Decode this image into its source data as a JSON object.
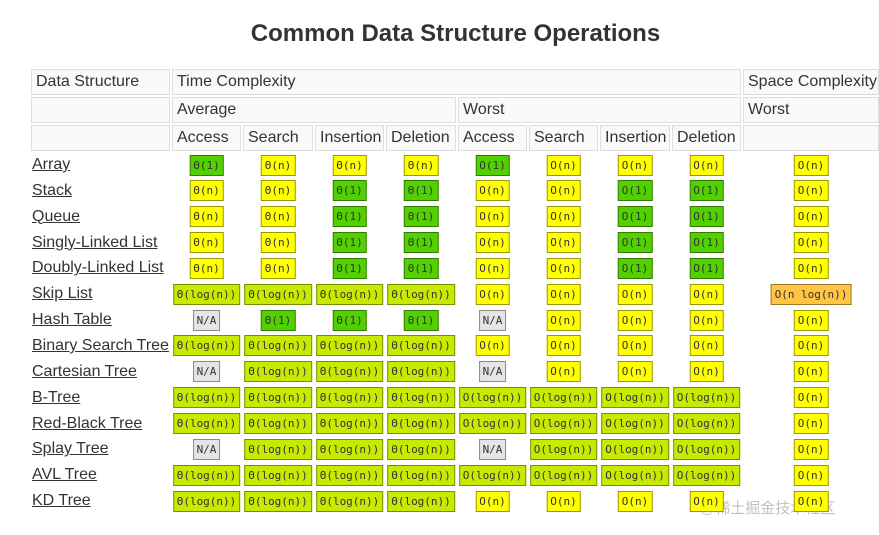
{
  "title": "Common Data Structure Operations",
  "header": {
    "corner": "Data Structure",
    "time": "Time Complexity",
    "space": "Space Complexity",
    "average": "Average",
    "worst": "Worst",
    "space_worst": "Worst",
    "average_ops": [
      "Access",
      "Search",
      "Insertion",
      "Deletion"
    ],
    "worst_ops": [
      "Access",
      "Search",
      "Insertion",
      "Deletion"
    ]
  },
  "rows": [
    {
      "name": "Array",
      "cells": [
        {
          "text": "Θ(1)",
          "color": "#53d000"
        },
        {
          "text": "Θ(n)",
          "color": "#ffff00"
        },
        {
          "text": "Θ(n)",
          "color": "#ffff00"
        },
        {
          "text": "Θ(n)",
          "color": "#ffff00"
        },
        {
          "text": "O(1)",
          "color": "#53d000"
        },
        {
          "text": "O(n)",
          "color": "#ffff00"
        },
        {
          "text": "O(n)",
          "color": "#ffff00"
        },
        {
          "text": "O(n)",
          "color": "#ffff00"
        },
        {
          "text": "O(n)",
          "color": "#ffff00"
        }
      ]
    },
    {
      "name": "Stack",
      "cells": [
        {
          "text": "Θ(n)",
          "color": "#ffff00"
        },
        {
          "text": "Θ(n)",
          "color": "#ffff00"
        },
        {
          "text": "Θ(1)",
          "color": "#53d000"
        },
        {
          "text": "Θ(1)",
          "color": "#53d000"
        },
        {
          "text": "O(n)",
          "color": "#ffff00"
        },
        {
          "text": "O(n)",
          "color": "#ffff00"
        },
        {
          "text": "O(1)",
          "color": "#53d000"
        },
        {
          "text": "O(1)",
          "color": "#53d000"
        },
        {
          "text": "O(n)",
          "color": "#ffff00"
        }
      ]
    },
    {
      "name": "Queue",
      "cells": [
        {
          "text": "Θ(n)",
          "color": "#ffff00"
        },
        {
          "text": "Θ(n)",
          "color": "#ffff00"
        },
        {
          "text": "Θ(1)",
          "color": "#53d000"
        },
        {
          "text": "Θ(1)",
          "color": "#53d000"
        },
        {
          "text": "O(n)",
          "color": "#ffff00"
        },
        {
          "text": "O(n)",
          "color": "#ffff00"
        },
        {
          "text": "O(1)",
          "color": "#53d000"
        },
        {
          "text": "O(1)",
          "color": "#53d000"
        },
        {
          "text": "O(n)",
          "color": "#ffff00"
        }
      ]
    },
    {
      "name": "Singly-Linked List",
      "cells": [
        {
          "text": "Θ(n)",
          "color": "#ffff00"
        },
        {
          "text": "Θ(n)",
          "color": "#ffff00"
        },
        {
          "text": "Θ(1)",
          "color": "#53d000"
        },
        {
          "text": "Θ(1)",
          "color": "#53d000"
        },
        {
          "text": "O(n)",
          "color": "#ffff00"
        },
        {
          "text": "O(n)",
          "color": "#ffff00"
        },
        {
          "text": "O(1)",
          "color": "#53d000"
        },
        {
          "text": "O(1)",
          "color": "#53d000"
        },
        {
          "text": "O(n)",
          "color": "#ffff00"
        }
      ]
    },
    {
      "name": "Doubly-Linked List",
      "cells": [
        {
          "text": "Θ(n)",
          "color": "#ffff00"
        },
        {
          "text": "Θ(n)",
          "color": "#ffff00"
        },
        {
          "text": "Θ(1)",
          "color": "#53d000"
        },
        {
          "text": "Θ(1)",
          "color": "#53d000"
        },
        {
          "text": "O(n)",
          "color": "#ffff00"
        },
        {
          "text": "O(n)",
          "color": "#ffff00"
        },
        {
          "text": "O(1)",
          "color": "#53d000"
        },
        {
          "text": "O(1)",
          "color": "#53d000"
        },
        {
          "text": "O(n)",
          "color": "#ffff00"
        }
      ]
    },
    {
      "name": "Skip List",
      "cells": [
        {
          "text": "Θ(log(n))",
          "color": "#c8ea00"
        },
        {
          "text": "Θ(log(n))",
          "color": "#c8ea00"
        },
        {
          "text": "Θ(log(n))",
          "color": "#c8ea00"
        },
        {
          "text": "Θ(log(n))",
          "color": "#c8ea00"
        },
        {
          "text": "O(n)",
          "color": "#ffff00"
        },
        {
          "text": "O(n)",
          "color": "#ffff00"
        },
        {
          "text": "O(n)",
          "color": "#ffff00"
        },
        {
          "text": "O(n)",
          "color": "#ffff00"
        },
        {
          "text": "O(n log(n))",
          "color": "#ffc543"
        }
      ]
    },
    {
      "name": "Hash Table",
      "cells": [
        {
          "text": "N/A",
          "color": "#e5e5e5"
        },
        {
          "text": "Θ(1)",
          "color": "#53d000"
        },
        {
          "text": "Θ(1)",
          "color": "#53d000"
        },
        {
          "text": "Θ(1)",
          "color": "#53d000"
        },
        {
          "text": "N/A",
          "color": "#e5e5e5"
        },
        {
          "text": "O(n)",
          "color": "#ffff00"
        },
        {
          "text": "O(n)",
          "color": "#ffff00"
        },
        {
          "text": "O(n)",
          "color": "#ffff00"
        },
        {
          "text": "O(n)",
          "color": "#ffff00"
        }
      ]
    },
    {
      "name": "Binary Search Tree",
      "cells": [
        {
          "text": "Θ(log(n))",
          "color": "#c8ea00"
        },
        {
          "text": "Θ(log(n))",
          "color": "#c8ea00"
        },
        {
          "text": "Θ(log(n))",
          "color": "#c8ea00"
        },
        {
          "text": "Θ(log(n))",
          "color": "#c8ea00"
        },
        {
          "text": "O(n)",
          "color": "#ffff00"
        },
        {
          "text": "O(n)",
          "color": "#ffff00"
        },
        {
          "text": "O(n)",
          "color": "#ffff00"
        },
        {
          "text": "O(n)",
          "color": "#ffff00"
        },
        {
          "text": "O(n)",
          "color": "#ffff00"
        }
      ]
    },
    {
      "name": "Cartesian Tree",
      "cells": [
        {
          "text": "N/A",
          "color": "#e5e5e5"
        },
        {
          "text": "Θ(log(n))",
          "color": "#c8ea00"
        },
        {
          "text": "Θ(log(n))",
          "color": "#c8ea00"
        },
        {
          "text": "Θ(log(n))",
          "color": "#c8ea00"
        },
        {
          "text": "N/A",
          "color": "#e5e5e5"
        },
        {
          "text": "O(n)",
          "color": "#ffff00"
        },
        {
          "text": "O(n)",
          "color": "#ffff00"
        },
        {
          "text": "O(n)",
          "color": "#ffff00"
        },
        {
          "text": "O(n)",
          "color": "#ffff00"
        }
      ]
    },
    {
      "name": "B-Tree",
      "cells": [
        {
          "text": "Θ(log(n))",
          "color": "#c8ea00"
        },
        {
          "text": "Θ(log(n))",
          "color": "#c8ea00"
        },
        {
          "text": "Θ(log(n))",
          "color": "#c8ea00"
        },
        {
          "text": "Θ(log(n))",
          "color": "#c8ea00"
        },
        {
          "text": "O(log(n))",
          "color": "#c8ea00"
        },
        {
          "text": "O(log(n))",
          "color": "#c8ea00"
        },
        {
          "text": "O(log(n))",
          "color": "#c8ea00"
        },
        {
          "text": "O(log(n))",
          "color": "#c8ea00"
        },
        {
          "text": "O(n)",
          "color": "#ffff00"
        }
      ]
    },
    {
      "name": "Red-Black Tree",
      "cells": [
        {
          "text": "Θ(log(n))",
          "color": "#c8ea00"
        },
        {
          "text": "Θ(log(n))",
          "color": "#c8ea00"
        },
        {
          "text": "Θ(log(n))",
          "color": "#c8ea00"
        },
        {
          "text": "Θ(log(n))",
          "color": "#c8ea00"
        },
        {
          "text": "O(log(n))",
          "color": "#c8ea00"
        },
        {
          "text": "O(log(n))",
          "color": "#c8ea00"
        },
        {
          "text": "O(log(n))",
          "color": "#c8ea00"
        },
        {
          "text": "O(log(n))",
          "color": "#c8ea00"
        },
        {
          "text": "O(n)",
          "color": "#ffff00"
        }
      ]
    },
    {
      "name": "Splay Tree",
      "cells": [
        {
          "text": "N/A",
          "color": "#e5e5e5"
        },
        {
          "text": "Θ(log(n))",
          "color": "#c8ea00"
        },
        {
          "text": "Θ(log(n))",
          "color": "#c8ea00"
        },
        {
          "text": "Θ(log(n))",
          "color": "#c8ea00"
        },
        {
          "text": "N/A",
          "color": "#e5e5e5"
        },
        {
          "text": "O(log(n))",
          "color": "#c8ea00"
        },
        {
          "text": "O(log(n))",
          "color": "#c8ea00"
        },
        {
          "text": "O(log(n))",
          "color": "#c8ea00"
        },
        {
          "text": "O(n)",
          "color": "#ffff00"
        }
      ]
    },
    {
      "name": "AVL Tree",
      "cells": [
        {
          "text": "Θ(log(n))",
          "color": "#c8ea00"
        },
        {
          "text": "Θ(log(n))",
          "color": "#c8ea00"
        },
        {
          "text": "Θ(log(n))",
          "color": "#c8ea00"
        },
        {
          "text": "Θ(log(n))",
          "color": "#c8ea00"
        },
        {
          "text": "O(log(n))",
          "color": "#c8ea00"
        },
        {
          "text": "O(log(n))",
          "color": "#c8ea00"
        },
        {
          "text": "O(log(n))",
          "color": "#c8ea00"
        },
        {
          "text": "O(log(n))",
          "color": "#c8ea00"
        },
        {
          "text": "O(n)",
          "color": "#ffff00"
        }
      ]
    },
    {
      "name": "KD Tree",
      "cells": [
        {
          "text": "Θ(log(n))",
          "color": "#c8ea00"
        },
        {
          "text": "Θ(log(n))",
          "color": "#c8ea00"
        },
        {
          "text": "Θ(log(n))",
          "color": "#c8ea00"
        },
        {
          "text": "Θ(log(n))",
          "color": "#c8ea00"
        },
        {
          "text": "O(n)",
          "color": "#ffff00"
        },
        {
          "text": "O(n)",
          "color": "#ffff00"
        },
        {
          "text": "O(n)",
          "color": "#ffff00"
        },
        {
          "text": "O(n)",
          "color": "#ffff00"
        },
        {
          "text": "O(n)",
          "color": "#ffff00"
        }
      ]
    }
  ],
  "watermark": "@稀土掘金技术社区"
}
